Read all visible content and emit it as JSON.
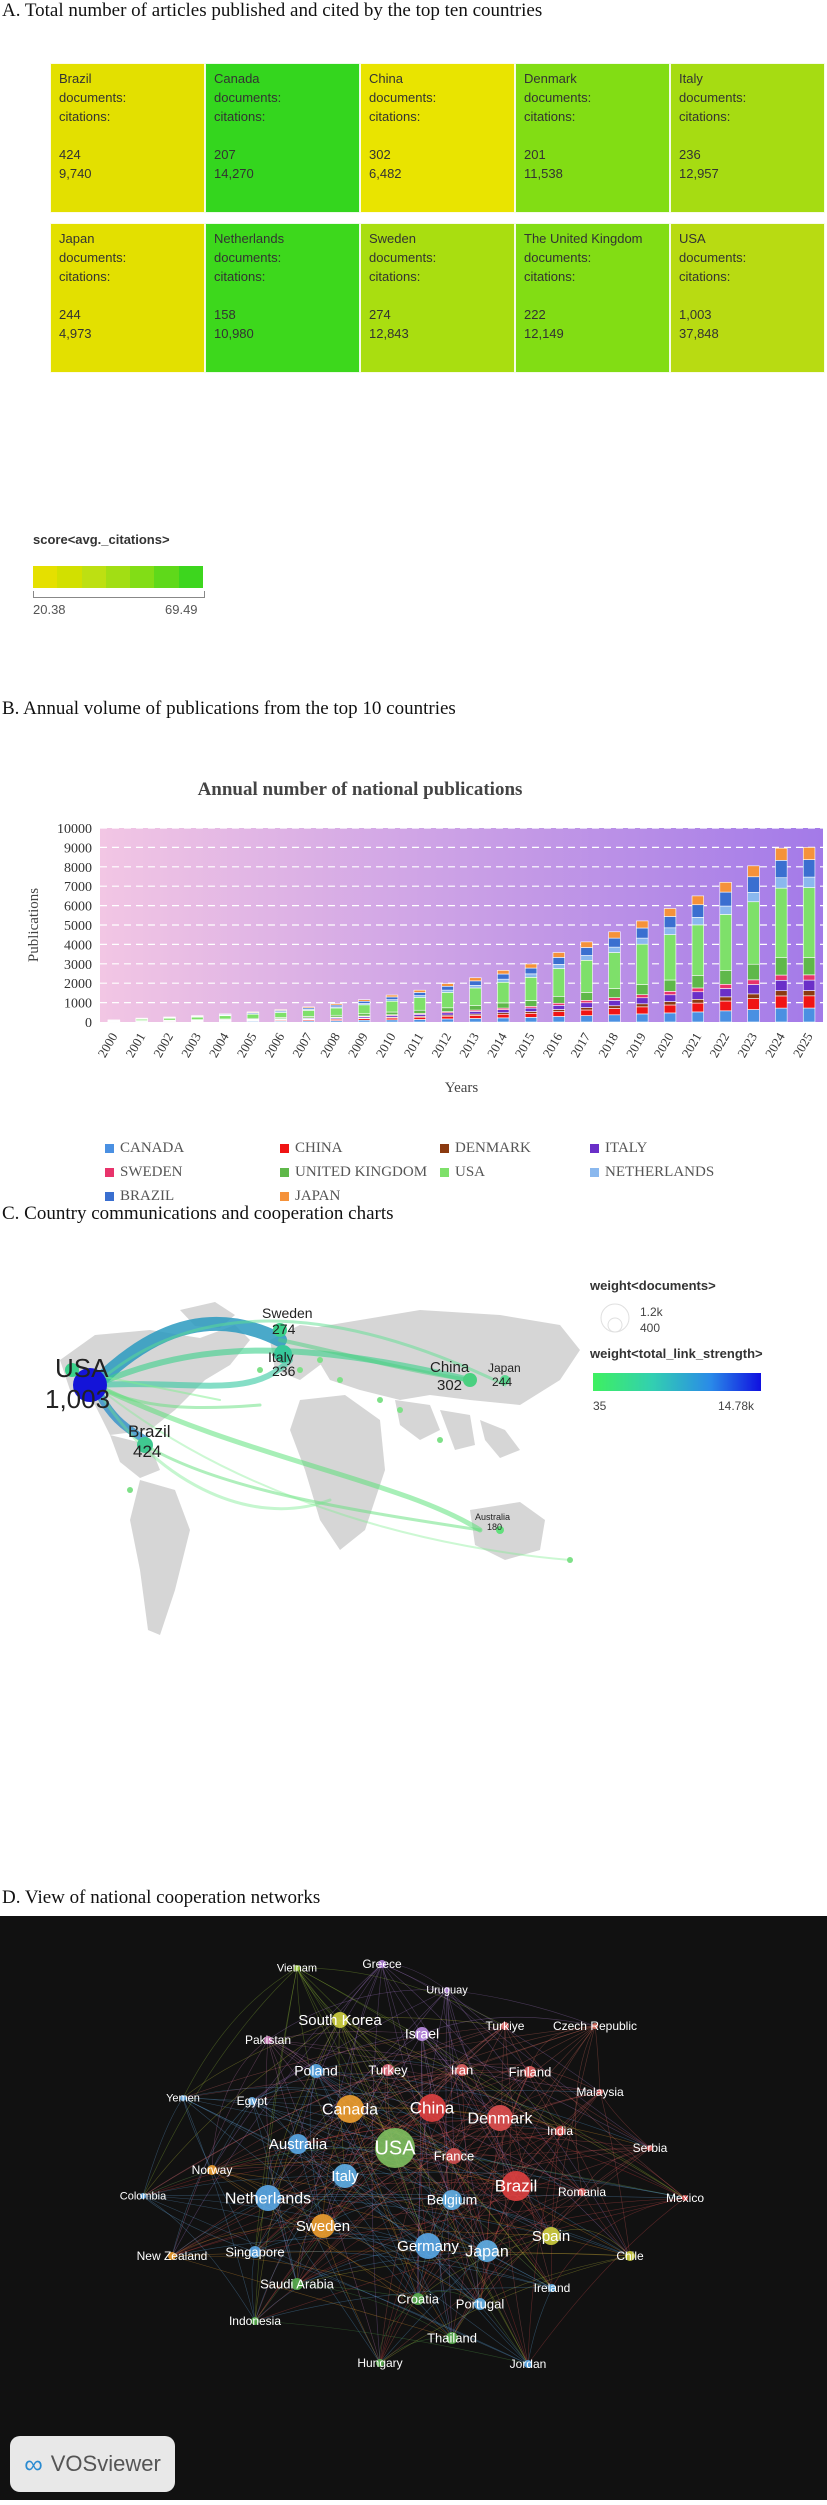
{
  "sections": {
    "a_title": "A. Total number of articles published and cited by the top ten countries",
    "b_title": "B. Annual volume of publications from the top 10 countries",
    "c_title": "C. Country communications and cooperation charts",
    "d_title": "D. View of national cooperation networks"
  },
  "treemap": {
    "line_documents": "documents:",
    "line_citations": "citations:",
    "tiles": [
      {
        "name": "Brazil",
        "documents": "424",
        "citations": "9,740",
        "color": "#e3e000"
      },
      {
        "name": "Canada",
        "documents": "207",
        "citations": "14,270",
        "color": "#34d61e"
      },
      {
        "name": "China",
        "documents": "302",
        "citations": "6,482",
        "color": "#e9e400"
      },
      {
        "name": "Denmark",
        "documents": "201",
        "citations": "11,538",
        "color": "#82dd14"
      },
      {
        "name": "Italy",
        "documents": "236",
        "citations": "12,957",
        "color": "#a6dc12"
      },
      {
        "name": "Japan",
        "documents": "244",
        "citations": "4,973",
        "color": "#e3e000"
      },
      {
        "name": "Netherlands",
        "documents": "158",
        "citations": "10,980",
        "color": "#3dd81c"
      },
      {
        "name": "Sweden",
        "documents": "274",
        "citations": "12,843",
        "color": "#a9de10"
      },
      {
        "name": "The United Kingdom",
        "documents": "222",
        "citations": "12,149",
        "color": "#82dd14"
      },
      {
        "name": "USA",
        "documents": "1,003",
        "citations": "37,848",
        "color": "#b8db12"
      }
    ],
    "legend": {
      "title": "score<avg._citations>",
      "min": "20.38",
      "max": "69.49",
      "colors": [
        "#e5e000",
        "#d2e000",
        "#bde012",
        "#a2de14",
        "#82dd16",
        "#5fd91a",
        "#3dd61e"
      ]
    }
  },
  "chart_data": [
    {
      "type": "bar",
      "stacked": true,
      "title": "Annual number of national publications",
      "xlabel": "Years",
      "ylabel": "Publications",
      "ylim": [
        0,
        10000
      ],
      "yticks": [
        0,
        1000,
        2000,
        3000,
        4000,
        5000,
        6000,
        7000,
        8000,
        9000,
        10000
      ],
      "grid": "dashed horizontal",
      "categories": [
        "2000",
        "2001",
        "2002",
        "2003",
        "2004",
        "2005",
        "2006",
        "2007",
        "2008",
        "2009",
        "2010",
        "2011",
        "2012",
        "2013",
        "2014",
        "2015",
        "2016",
        "2017",
        "2018",
        "2019",
        "2020",
        "2021",
        "2022",
        "2023",
        "2024",
        "2025"
      ],
      "totals": [
        110,
        200,
        260,
        330,
        420,
        520,
        640,
        780,
        940,
        1150,
        1390,
        1640,
        1980,
        2280,
        2660,
        2990,
        3580,
        4130,
        4650,
        5210,
        5850,
        6500,
        7200,
        8050,
        8960,
        9000
      ],
      "series": [
        {
          "name": "CANADA",
          "color": "#4a90e2"
        },
        {
          "name": "CHINA",
          "color": "#f01414"
        },
        {
          "name": "DENMARK",
          "color": "#8b3a10"
        },
        {
          "name": "ITALY",
          "color": "#6a2fc8"
        },
        {
          "name": "SWEDEN",
          "color": "#e8336b"
        },
        {
          "name": "UNITED KINGDOM",
          "color": "#5fb84a"
        },
        {
          "name": "USA",
          "color": "#7ee06a"
        },
        {
          "name": "NETHERLANDS",
          "color": "#8ab8ee"
        },
        {
          "name": "BRAZIL",
          "color": "#3a6fd0"
        },
        {
          "name": "JAPAN",
          "color": "#f5923a"
        }
      ],
      "share": [
        0.08,
        0.07,
        0.03,
        0.06,
        0.03,
        0.1,
        0.4,
        0.06,
        0.1,
        0.07
      ]
    }
  ],
  "map": {
    "legend_docs_title": "weight<documents>",
    "legend_docs_max": "1.2k",
    "legend_docs_min": "400",
    "legend_link_title": "weight<total_link_strength>",
    "legend_link_min": "35",
    "legend_link_max": "14.78k",
    "nodes": [
      {
        "label": "USA",
        "value": "1,003",
        "size": "large"
      },
      {
        "label": "Sweden",
        "value": "274",
        "size": "mid"
      },
      {
        "label": "Italy",
        "value": "236",
        "size": "mid"
      },
      {
        "label": "China",
        "value": "302",
        "size": "mid"
      },
      {
        "label": "Japan",
        "value": "244",
        "size": "small"
      },
      {
        "label": "Brazil",
        "value": "424",
        "size": "mid"
      },
      {
        "label": "Australia",
        "value": "180",
        "size": "small"
      }
    ]
  },
  "network": {
    "brand": "VOSviewer",
    "labels": [
      "Vietnam",
      "Greece",
      "Uruguay",
      "South Korea",
      "Pakistan",
      "Israel",
      "Turkiye",
      "Czech Republic",
      "Poland",
      "Turkey",
      "Iran",
      "Finland",
      "Yemen",
      "Egypt",
      "Canada",
      "China",
      "Denmark",
      "Malaysia",
      "India",
      "Serbia",
      "Australia",
      "USA",
      "France",
      "Norway",
      "Italy",
      "Brazil",
      "Romania",
      "Colombia",
      "Netherlands",
      "Belgium",
      "Mexico",
      "Sweden",
      "Spain",
      "Germany",
      "Japan",
      "New Zealand",
      "Singapore",
      "Chile",
      "Saudi Arabia",
      "Ireland",
      "Croatia",
      "Portugal",
      "Indonesia",
      "Thailand",
      "Hungary",
      "Jordan"
    ]
  }
}
